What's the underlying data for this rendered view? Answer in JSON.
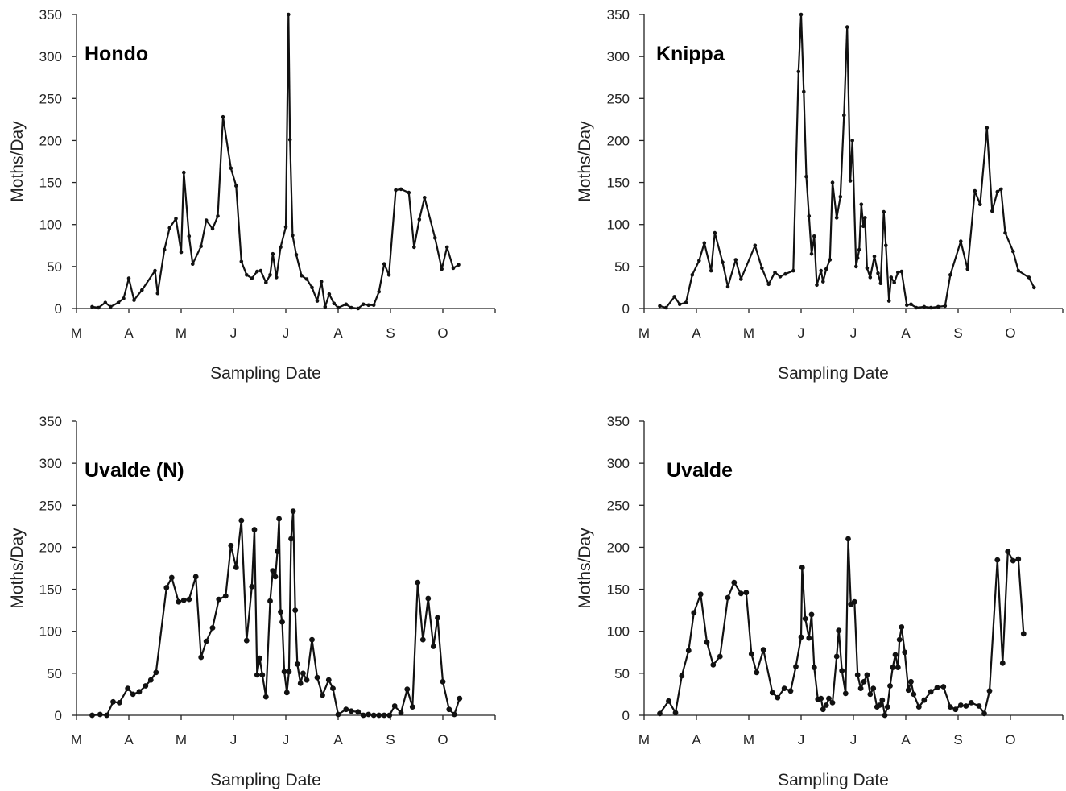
{
  "chart_data": [
    {
      "type": "line",
      "title": "Hondo",
      "xlabel": "Sampling Date",
      "ylabel": "Moths/Day",
      "ylim": [
        0,
        350
      ],
      "yticks": [
        0,
        50,
        100,
        150,
        200,
        250,
        300,
        350
      ],
      "xlim": [
        0,
        8
      ],
      "xtick_labels": [
        "M",
        "A",
        "M",
        "J",
        "J",
        "A",
        "S",
        "O"
      ],
      "grid": false,
      "series": [
        {
          "marker_size": "small",
          "x": [
            0.3,
            0.42,
            0.55,
            0.65,
            0.8,
            0.9,
            1.0,
            1.1,
            1.25,
            1.5,
            1.55,
            1.68,
            1.78,
            1.9,
            2.0,
            2.05,
            2.15,
            2.22,
            2.38,
            2.48,
            2.6,
            2.7,
            2.8,
            2.95,
            3.05,
            3.15,
            3.25,
            3.35,
            3.45,
            3.52,
            3.62,
            3.7,
            3.75,
            3.82,
            3.9,
            4.0,
            4.05,
            4.08,
            4.13,
            4.2,
            4.3,
            4.4,
            4.5,
            4.6,
            4.68,
            4.75,
            4.83,
            4.92,
            5.0,
            5.15,
            5.25,
            5.38,
            5.48,
            5.58,
            5.68,
            5.78,
            5.88,
            5.97,
            6.1,
            6.2,
            6.35,
            6.45,
            6.55,
            6.65,
            6.85,
            6.98,
            7.08,
            7.2,
            7.3
          ],
          "y": [
            2,
            1,
            7,
            2,
            7,
            12,
            36,
            10,
            22,
            45,
            18,
            70,
            96,
            107,
            67,
            162,
            86,
            53,
            74,
            105,
            95,
            110,
            228,
            167,
            146,
            56,
            40,
            36,
            44,
            45,
            31,
            40,
            65,
            37,
            73,
            97,
            350,
            201,
            87,
            64,
            39,
            35,
            25,
            9,
            32,
            2,
            17,
            6,
            1,
            5,
            1,
            0,
            5,
            4,
            4,
            20,
            53,
            40,
            141,
            142,
            138,
            73,
            106,
            132,
            84,
            47,
            73,
            48,
            52
          ]
        }
      ]
    },
    {
      "type": "line",
      "title": "Knippa",
      "xlabel": "Sampling Date",
      "ylabel": "Moths/Day",
      "ylim": [
        0,
        350
      ],
      "yticks": [
        0,
        50,
        100,
        150,
        200,
        250,
        300,
        350
      ],
      "xlim": [
        0,
        8
      ],
      "xtick_labels": [
        "M",
        "A",
        "M",
        "J",
        "J",
        "A",
        "S",
        "O"
      ],
      "grid": false,
      "series": [
        {
          "marker_size": "small",
          "x": [
            0.3,
            0.42,
            0.58,
            0.68,
            0.8,
            0.92,
            1.05,
            1.15,
            1.28,
            1.35,
            1.5,
            1.6,
            1.75,
            1.85,
            2.12,
            2.25,
            2.38,
            2.5,
            2.6,
            2.7,
            2.85,
            2.95,
            3.0,
            3.05,
            3.1,
            3.15,
            3.2,
            3.25,
            3.3,
            3.38,
            3.42,
            3.48,
            3.55,
            3.6,
            3.68,
            3.75,
            3.82,
            3.88,
            3.94,
            3.98,
            4.05,
            4.08,
            4.11,
            4.15,
            4.19,
            4.22,
            4.26,
            4.32,
            4.4,
            4.47,
            4.52,
            4.58,
            4.62,
            4.68,
            4.72,
            4.78,
            4.85,
            4.92,
            5.02,
            5.1,
            5.2,
            5.35,
            5.48,
            5.62,
            5.75,
            5.85,
            6.05,
            6.18,
            6.32,
            6.42,
            6.55,
            6.65,
            6.75,
            6.82,
            6.9,
            7.05,
            7.15,
            7.35,
            7.45
          ],
          "y": [
            3,
            1,
            14,
            5,
            7,
            40,
            57,
            78,
            45,
            90,
            55,
            26,
            58,
            35,
            75,
            48,
            29,
            43,
            38,
            41,
            45,
            282,
            350,
            258,
            157,
            110,
            65,
            86,
            28,
            45,
            32,
            47,
            58,
            150,
            108,
            133,
            230,
            335,
            152,
            200,
            50,
            60,
            70,
            124,
            98,
            108,
            48,
            37,
            62,
            42,
            30,
            115,
            75,
            9,
            37,
            31,
            43,
            44,
            4,
            5,
            1,
            2,
            1,
            2,
            3,
            40,
            80,
            47,
            140,
            124,
            215,
            116,
            139,
            142,
            90,
            68,
            45,
            37,
            25
          ]
        }
      ]
    },
    {
      "type": "line",
      "title": "Uvalde (N)",
      "xlabel": "Sampling Date",
      "ylabel": "Moths/Day",
      "ylim": [
        0,
        350
      ],
      "yticks": [
        0,
        50,
        100,
        150,
        200,
        250,
        300,
        350
      ],
      "xlim": [
        0,
        8
      ],
      "xtick_labels": [
        "M",
        "A",
        "M",
        "J",
        "J",
        "A",
        "S",
        "O"
      ],
      "grid": false,
      "series": [
        {
          "marker_size": "large",
          "x": [
            0.3,
            0.45,
            0.58,
            0.7,
            0.82,
            0.98,
            1.08,
            1.2,
            1.32,
            1.42,
            1.52,
            1.72,
            1.82,
            1.95,
            2.05,
            2.15,
            2.28,
            2.38,
            2.48,
            2.6,
            2.72,
            2.85,
            2.95,
            3.05,
            3.15,
            3.25,
            3.35,
            3.4,
            3.45,
            3.5,
            3.55,
            3.62,
            3.7,
            3.75,
            3.8,
            3.84,
            3.87,
            3.9,
            3.93,
            3.97,
            4.02,
            4.06,
            4.1,
            4.14,
            4.18,
            4.22,
            4.28,
            4.33,
            4.4,
            4.5,
            4.6,
            4.7,
            4.82,
            4.9,
            5.0,
            5.15,
            5.25,
            5.38,
            5.48,
            5.58,
            5.68,
            5.78,
            5.88,
            5.98,
            6.08,
            6.2,
            6.32,
            6.42,
            6.52,
            6.62,
            6.72,
            6.82,
            6.9,
            7.0,
            7.12,
            7.22,
            7.32
          ],
          "y": [
            0,
            1,
            0,
            16,
            15,
            32,
            25,
            28,
            35,
            42,
            51,
            152,
            164,
            135,
            137,
            138,
            165,
            69,
            88,
            104,
            138,
            142,
            202,
            176,
            232,
            89,
            153,
            221,
            48,
            68,
            48,
            22,
            136,
            172,
            165,
            195,
            234,
            123,
            111,
            52,
            27,
            52,
            210,
            243,
            125,
            61,
            38,
            50,
            42,
            90,
            45,
            24,
            42,
            32,
            1,
            7,
            5,
            4,
            0,
            1,
            0,
            0,
            0,
            0,
            11,
            3,
            31,
            10,
            158,
            90,
            139,
            82,
            116,
            40,
            7,
            1,
            20
          ]
        }
      ]
    },
    {
      "type": "line",
      "title": "Uvalde",
      "xlabel": "Sampling Date",
      "ylabel": "Moths/Day",
      "ylim": [
        0,
        350
      ],
      "yticks": [
        0,
        50,
        100,
        150,
        200,
        250,
        300,
        350
      ],
      "xlim": [
        0,
        8
      ],
      "xtick_labels": [
        "M",
        "A",
        "M",
        "J",
        "J",
        "A",
        "S",
        "O"
      ],
      "grid": false,
      "series": [
        {
          "marker_size": "large",
          "x": [
            0.3,
            0.47,
            0.6,
            0.72,
            0.85,
            0.95,
            1.08,
            1.2,
            1.32,
            1.45,
            1.6,
            1.72,
            1.85,
            1.95,
            2.05,
            2.15,
            2.28,
            2.45,
            2.55,
            2.68,
            2.8,
            2.9,
            3.0,
            3.02,
            3.08,
            3.15,
            3.2,
            3.25,
            3.32,
            3.38,
            3.42,
            3.48,
            3.53,
            3.6,
            3.68,
            3.72,
            3.78,
            3.85,
            3.9,
            3.95,
            4.02,
            4.08,
            4.14,
            4.2,
            4.26,
            4.32,
            4.38,
            4.45,
            4.5,
            4.55,
            4.6,
            4.65,
            4.7,
            4.75,
            4.8,
            4.85,
            4.88,
            4.92,
            4.98,
            5.05,
            5.1,
            5.15,
            5.25,
            5.35,
            5.48,
            5.6,
            5.72,
            5.85,
            5.95,
            6.05,
            6.15,
            6.25,
            6.4,
            6.5,
            6.6,
            6.75,
            6.85,
            6.95,
            7.05,
            7.15,
            7.25
          ],
          "y": [
            2,
            17,
            3,
            47,
            77,
            122,
            144,
            87,
            60,
            70,
            140,
            158,
            145,
            146,
            73,
            51,
            78,
            27,
            21,
            32,
            29,
            58,
            93,
            176,
            115,
            92,
            120,
            57,
            19,
            20,
            7,
            12,
            20,
            15,
            70,
            101,
            53,
            26,
            210,
            132,
            135,
            48,
            32,
            40,
            48,
            25,
            32,
            10,
            12,
            18,
            0,
            10,
            35,
            57,
            72,
            57,
            90,
            105,
            75,
            30,
            40,
            25,
            10,
            18,
            28,
            33,
            34,
            10,
            7,
            12,
            11,
            15,
            11,
            2,
            29,
            185,
            62,
            195,
            184,
            186,
            97
          ]
        }
      ]
    }
  ]
}
